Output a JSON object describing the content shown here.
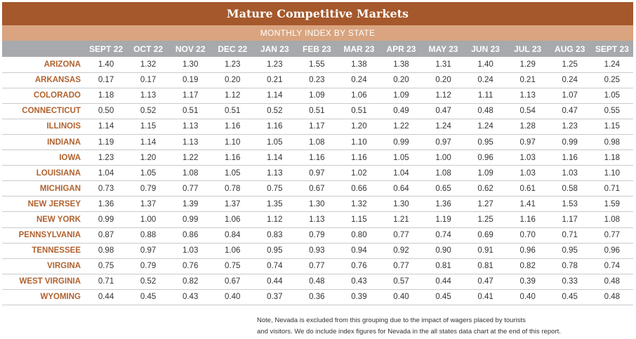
{
  "title": "Mature Competitive Markets",
  "subtitle": "MONTHLY INDEX BY STATE",
  "columns": [
    "SEPT 22",
    "OCT 22",
    "NOV 22",
    "DEC 22",
    "JAN 23",
    "FEB 23",
    "MAR 23",
    "APR 23",
    "MAY 23",
    "JUN 23",
    "JUL 23",
    "AUG 23",
    "SEPT 23"
  ],
  "rows": [
    {
      "state": "ARIZONA",
      "values": [
        "1.40",
        "1.32",
        "1.30",
        "1.23",
        "1.23",
        "1.55",
        "1.38",
        "1.38",
        "1.31",
        "1.40",
        "1.29",
        "1.25",
        "1.24"
      ]
    },
    {
      "state": "ARKANSAS",
      "values": [
        "0.17",
        "0.17",
        "0.19",
        "0.20",
        "0.21",
        "0.23",
        "0.24",
        "0.20",
        "0.20",
        "0.24",
        "0.21",
        "0.24",
        "0.25"
      ]
    },
    {
      "state": "COLORADO",
      "values": [
        "1.18",
        "1.13",
        "1.17",
        "1.12",
        "1.14",
        "1.09",
        "1.06",
        "1.09",
        "1.12",
        "1.11",
        "1.13",
        "1.07",
        "1.05"
      ]
    },
    {
      "state": "CONNECTICUT",
      "values": [
        "0.50",
        "0.52",
        "0.51",
        "0.51",
        "0.52",
        "0.51",
        "0.51",
        "0.49",
        "0.47",
        "0.48",
        "0.54",
        "0.47",
        "0.55"
      ]
    },
    {
      "state": "ILLINOIS",
      "values": [
        "1.14",
        "1.15",
        "1.13",
        "1.16",
        "1.16",
        "1.17",
        "1.20",
        "1.22",
        "1.24",
        "1.24",
        "1.28",
        "1.23",
        "1.15"
      ]
    },
    {
      "state": "INDIANA",
      "values": [
        "1.19",
        "1.14",
        "1.13",
        "1.10",
        "1.05",
        "1.08",
        "1.10",
        "0.99",
        "0.97",
        "0.95",
        "0.97",
        "0.99",
        "0.98"
      ]
    },
    {
      "state": "IOWA",
      "values": [
        "1.23",
        "1.20",
        "1.22",
        "1.16",
        "1.14",
        "1.16",
        "1.16",
        "1.05",
        "1.00",
        "0.96",
        "1.03",
        "1.16",
        "1.18"
      ]
    },
    {
      "state": "LOUISIANA",
      "values": [
        "1.04",
        "1.05",
        "1.08",
        "1.05",
        "1.13",
        "0.97",
        "1.02",
        "1.04",
        "1.08",
        "1.09",
        "1.03",
        "1.03",
        "1.10"
      ]
    },
    {
      "state": "MICHIGAN",
      "values": [
        "0.73",
        "0.79",
        "0.77",
        "0.78",
        "0.75",
        "0.67",
        "0.66",
        "0.64",
        "0.65",
        "0.62",
        "0.61",
        "0.58",
        "0.71"
      ]
    },
    {
      "state": "NEW JERSEY",
      "values": [
        "1.36",
        "1.37",
        "1.39",
        "1.37",
        "1.35",
        "1.30",
        "1.32",
        "1.30",
        "1.36",
        "1.27",
        "1.41",
        "1.53",
        "1.59"
      ]
    },
    {
      "state": "NEW YORK",
      "values": [
        "0.99",
        "1.00",
        "0.99",
        "1.06",
        "1.12",
        "1.13",
        "1.15",
        "1.21",
        "1.19",
        "1.25",
        "1.16",
        "1.17",
        "1.08"
      ]
    },
    {
      "state": "PENNSYLVANIA",
      "values": [
        "0.87",
        "0.88",
        "0.86",
        "0.84",
        "0.83",
        "0.79",
        "0.80",
        "0.77",
        "0.74",
        "0.69",
        "0.70",
        "0.71",
        "0.77"
      ]
    },
    {
      "state": "TENNESSEE",
      "values": [
        "0.98",
        "0.97",
        "1.03",
        "1.06",
        "0.95",
        "0.93",
        "0.94",
        "0.92",
        "0.90",
        "0.91",
        "0.96",
        "0.95",
        "0.96"
      ]
    },
    {
      "state": "VIRGINA",
      "values": [
        "0.75",
        "0.79",
        "0.76",
        "0.75",
        "0.74",
        "0.77",
        "0.76",
        "0.77",
        "0.81",
        "0.81",
        "0.82",
        "0.78",
        "0.74"
      ]
    },
    {
      "state": "WEST VIRGINIA",
      "values": [
        "0.71",
        "0.52",
        "0.82",
        "0.67",
        "0.44",
        "0.48",
        "0.43",
        "0.57",
        "0.44",
        "0.47",
        "0.39",
        "0.33",
        "0.48"
      ]
    },
    {
      "state": "WYOMING",
      "values": [
        "0.44",
        "0.45",
        "0.43",
        "0.40",
        "0.37",
        "0.36",
        "0.39",
        "0.40",
        "0.45",
        "0.41",
        "0.40",
        "0.45",
        "0.48"
      ]
    }
  ],
  "note": {
    "line1": "Note, Nevada is excluded from this grouping due to the impact of wagers placed by tourists",
    "line2": "and visitors. We do include index figures for Nevada in the all states data chart at the end of this report."
  },
  "colors": {
    "title_bg": "#a5582b",
    "subtitle_bg": "#d9a47f",
    "header_bg": "#a7a9ac",
    "state_text": "#b0622e"
  }
}
